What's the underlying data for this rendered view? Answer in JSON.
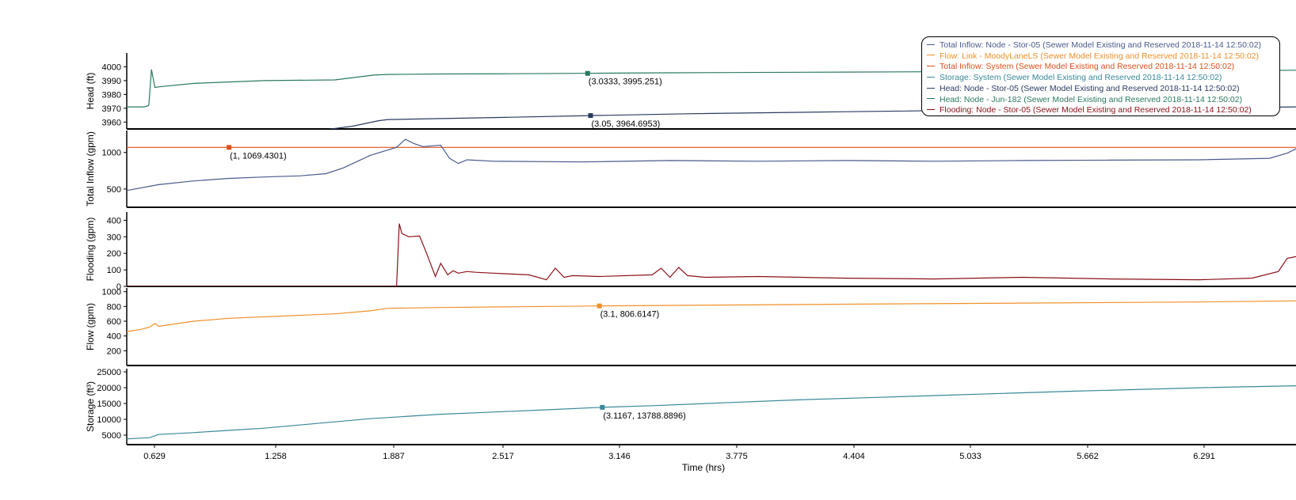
{
  "colors": {
    "inflow_node": "#4a5a8c",
    "flow_link": "#f0902a",
    "inflow_system": "#e0501a",
    "storage": "#3a8898",
    "head_stor": "#2a3a60",
    "head_jun": "#2a7a60",
    "flooding": "#8c1018"
  },
  "legend": [
    {
      "text": "Total Inflow: Node - Stor-05 (Sewer Model Existing and Reserved 2018-11-14 12:50:02)",
      "color": "#4a5a8c"
    },
    {
      "text": "Flow: Link - MoodyLaneLS (Sewer Model Existing and Reserved 2018-11-14 12:50:02)",
      "color": "#f0902a"
    },
    {
      "text": "Total Inflow: System (Sewer Model Existing and Reserved 2018-11-14 12:50:02)",
      "color": "#e0501a"
    },
    {
      "text": "Storage: System (Sewer Model Existing and Reserved 2018-11-14 12:50:02)",
      "color": "#3a8898"
    },
    {
      "text": "Head: Node - Stor-05 (Sewer Model Existing and Reserved 2018-11-14 12:50:02)",
      "color": "#2a3a60"
    },
    {
      "text": "Head: Node - Jun-182 (Sewer Model Existing and Reserved 2018-11-14 12:50:02)",
      "color": "#2a7a60"
    },
    {
      "text": "Flooding: Node - Stor-05 (Sewer Model Existing and Reserved 2018-11-14 12:50:02)",
      "color": "#8c1018"
    }
  ],
  "chart_data": {
    "type": "line",
    "xlabel": "Time (hrs)",
    "xlim": [
      0.42,
      7.05
    ],
    "xticks": [
      "0.629",
      "1.258",
      "1.887",
      "2.517",
      "3.146",
      "3.775",
      "4.404",
      "5.033",
      "5.662",
      "6.291"
    ],
    "panels": [
      {
        "ylabel": "Head (ft)",
        "ylim": [
          3955,
          4010
        ],
        "yticks": [
          "3960",
          "3970",
          "3980",
          "3990",
          "4000"
        ],
        "series": [
          {
            "name": "Head: Node - Jun-182",
            "color": "#2a7a60",
            "x": [
              0.42,
              0.52,
              0.545,
              0.56,
              0.58,
              0.6,
              0.8,
              1.2,
              1.6,
              1.82,
              1.9,
              2.2,
              2.6,
              3.0,
              3.5,
              4.5,
              5.5,
              6.5,
              7.05
            ],
            "y": [
              3971,
              3971,
              3972,
              3998,
              3985,
              3985.5,
              3988,
              3990,
              3990.5,
              3994,
              3994.5,
              3994.8,
              3995,
              3995.25,
              3995.7,
              3996.2,
              3996.7,
              3997.2,
              3997.5
            ]
          },
          {
            "name": "Head: Node - Stor-05",
            "color": "#2a3a60",
            "x": [
              1.55,
              1.7,
              1.85,
              1.9,
              2.2,
              2.6,
              3.05,
              3.6,
              4.5,
              5.5,
              6.5,
              7.05
            ],
            "y": [
              3954.5,
              3957,
              3961,
              3961.8,
              3962.5,
              3963.5,
              3964.7,
              3966,
              3967.5,
              3969,
              3970.2,
              3971
            ]
          }
        ],
        "annotations": [
          {
            "x": 3.0333,
            "y": 3995.251,
            "label": "(3.0333, 3995.251)",
            "color": "#2a7a60"
          },
          {
            "x": 3.05,
            "y": 3964.6953,
            "label": "(3.05, 3964.6953)",
            "color": "#2a3a60"
          }
        ]
      },
      {
        "ylabel": "Total Inflow (gpm)",
        "ylim": [
          250,
          1300
        ],
        "yticks": [
          "500",
          "1000"
        ],
        "series": [
          {
            "name": "Total Inflow: System",
            "color": "#e0501a",
            "x": [
              0.42,
              7.05
            ],
            "y": [
              1069.4301,
              1069.4301
            ]
          },
          {
            "name": "Total Inflow: Node - Stor-05",
            "color": "#4a5a8c",
            "x": [
              0.42,
              0.6,
              0.8,
              1.0,
              1.2,
              1.4,
              1.55,
              1.65,
              1.8,
              1.95,
              2.0,
              2.05,
              2.1,
              2.2,
              2.25,
              2.3,
              2.35,
              2.5,
              3.0,
              3.5,
              4.0,
              4.5,
              5.0,
              5.5,
              6.0,
              6.5,
              6.9,
              7.0,
              7.05
            ],
            "y": [
              480,
              560,
              610,
              645,
              665,
              680,
              710,
              790,
              960,
              1070,
              1180,
              1120,
              1080,
              1100,
              920,
              850,
              900,
              880,
              870,
              890,
              880,
              890,
              880,
              890,
              895,
              900,
              920,
              990,
              1050
            ]
          }
        ],
        "annotations": [
          {
            "x": 1,
            "y": 1069.4301,
            "label": "(1, 1069.4301)",
            "color": "#e0501a"
          }
        ]
      },
      {
        "ylabel": "Flooding (gpm)",
        "ylim": [
          0,
          450
        ],
        "yticks": [
          "0",
          "100",
          "200",
          "300",
          "400"
        ],
        "series": [
          {
            "name": "Flooding: Node - Stor-05",
            "color": "#8c1018",
            "x": [
              0.42,
              1.95,
              1.965,
              1.98,
              2.02,
              2.08,
              2.12,
              2.17,
              2.2,
              2.24,
              2.27,
              2.3,
              2.35,
              2.4,
              2.5,
              2.7,
              2.8,
              2.85,
              2.9,
              2.95,
              3.1,
              3.4,
              3.45,
              3.5,
              3.55,
              3.6,
              3.7,
              4.0,
              4.5,
              5.0,
              5.5,
              6.0,
              6.5,
              6.8,
              6.95,
              7.0,
              7.05
            ],
            "y": [
              0,
              0,
              380,
              320,
              300,
              305,
              200,
              60,
              140,
              70,
              95,
              80,
              90,
              85,
              80,
              70,
              40,
              110,
              55,
              65,
              60,
              70,
              110,
              55,
              115,
              65,
              55,
              60,
              50,
              45,
              55,
              45,
              40,
              50,
              90,
              170,
              180
            ]
          }
        ]
      },
      {
        "ylabel": "Flow (gpm)",
        "ylim": [
          0,
          1050
        ],
        "yticks": [
          "200",
          "400",
          "600",
          "800",
          "1000"
        ],
        "series": [
          {
            "name": "Flow: Link - MoodyLaneLS",
            "color": "#f0902a",
            "x": [
              0.42,
              0.5,
              0.55,
              0.58,
              0.6,
              0.8,
              1.0,
              1.3,
              1.6,
              1.8,
              1.9,
              2.2,
              2.6,
              3.1,
              3.6,
              4.5,
              5.5,
              6.5,
              7.05
            ],
            "y": [
              460,
              490,
              520,
              570,
              530,
              600,
              640,
              670,
              700,
              740,
              775,
              785,
              795,
              806.6,
              815,
              830,
              845,
              860,
              875
            ]
          }
        ],
        "annotations": [
          {
            "x": 3.1,
            "y": 806.6147,
            "label": "(3.1, 806.6147)",
            "color": "#f0902a"
          }
        ]
      },
      {
        "ylabel": "Storage (ft³)",
        "ylim": [
          2000,
          26000
        ],
        "yticks": [
          "5000",
          "10000",
          "15000",
          "20000",
          "25000"
        ],
        "series": [
          {
            "name": "Storage: System",
            "color": "#3a8898",
            "x": [
              0.42,
              0.55,
              0.6,
              0.8,
              1.0,
              1.2,
              1.4,
              1.6,
              1.8,
              2.0,
              2.2,
              2.5,
              2.8,
              3.1167,
              3.4,
              3.8,
              4.2,
              4.6,
              5.0,
              5.4,
              5.8,
              6.2,
              6.6,
              7.05
            ],
            "y": [
              3800,
              4200,
              5200,
              5800,
              6500,
              7200,
              8200,
              9200,
              10200,
              10900,
              11600,
              12300,
              13000,
              13788.9,
              14300,
              15200,
              16100,
              16800,
              17500,
              18200,
              18900,
              19500,
              20100,
              20600
            ]
          }
        ],
        "annotations": [
          {
            "x": 3.1167,
            "y": 13788.8896,
            "label": "(3.1167, 13788.8896)",
            "color": "#3a8898"
          }
        ]
      }
    ]
  }
}
